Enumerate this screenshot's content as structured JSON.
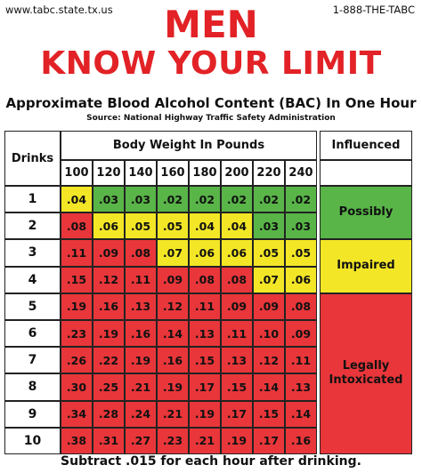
{
  "header": {
    "site": "www.tabc.state.tx.us",
    "phone": "1-888-THE-TABC",
    "title_line1": "MEN",
    "title_line2": "KNOW YOUR LIMIT",
    "subtitle": "Approximate Blood Alcohol Content (BAC) In One Hour",
    "source": "Source: National Highway Traffic Safety Administration"
  },
  "table": {
    "drinks_header": "Drinks",
    "weight_header": "Body Weight In Pounds",
    "influenced_header": "Influenced",
    "weights": [
      "100",
      "120",
      "140",
      "160",
      "180",
      "200",
      "220",
      "240"
    ],
    "rows": [
      {
        "drinks": "1",
        "values": [
          ".04",
          ".03",
          ".03",
          ".02",
          ".02",
          ".02",
          ".02",
          ".02"
        ],
        "levels": [
          "i",
          "p",
          "p",
          "p",
          "p",
          "p",
          "p",
          "p"
        ]
      },
      {
        "drinks": "2",
        "values": [
          ".08",
          ".06",
          ".05",
          ".05",
          ".04",
          ".04",
          ".03",
          ".03"
        ],
        "levels": [
          "l",
          "i",
          "i",
          "i",
          "i",
          "i",
          "p",
          "p"
        ]
      },
      {
        "drinks": "3",
        "values": [
          ".11",
          ".09",
          ".08",
          ".07",
          ".06",
          ".06",
          ".05",
          ".05"
        ],
        "levels": [
          "l",
          "l",
          "l",
          "i",
          "i",
          "i",
          "i",
          "i"
        ]
      },
      {
        "drinks": "4",
        "values": [
          ".15",
          ".12",
          ".11",
          ".09",
          ".08",
          ".08",
          ".07",
          ".06"
        ],
        "levels": [
          "l",
          "l",
          "l",
          "l",
          "l",
          "l",
          "i",
          "i"
        ]
      },
      {
        "drinks": "5",
        "values": [
          ".19",
          ".16",
          ".13",
          ".12",
          ".11",
          ".09",
          ".09",
          ".08"
        ],
        "levels": [
          "l",
          "l",
          "l",
          "l",
          "l",
          "l",
          "l",
          "l"
        ]
      },
      {
        "drinks": "6",
        "values": [
          ".23",
          ".19",
          ".16",
          ".14",
          ".13",
          ".11",
          ".10",
          ".09"
        ],
        "levels": [
          "l",
          "l",
          "l",
          "l",
          "l",
          "l",
          "l",
          "l"
        ]
      },
      {
        "drinks": "7",
        "values": [
          ".26",
          ".22",
          ".19",
          ".16",
          ".15",
          ".13",
          ".12",
          ".11"
        ],
        "levels": [
          "l",
          "l",
          "l",
          "l",
          "l",
          "l",
          "l",
          "l"
        ]
      },
      {
        "drinks": "8",
        "values": [
          ".30",
          ".25",
          ".21",
          ".19",
          ".17",
          ".15",
          ".14",
          ".13"
        ],
        "levels": [
          "l",
          "l",
          "l",
          "l",
          "l",
          "l",
          "l",
          "l"
        ]
      },
      {
        "drinks": "9",
        "values": [
          ".34",
          ".28",
          ".24",
          ".21",
          ".19",
          ".17",
          ".15",
          ".14"
        ],
        "levels": [
          "l",
          "l",
          "l",
          "l",
          "l",
          "l",
          "l",
          "l"
        ]
      },
      {
        "drinks": "10",
        "values": [
          ".38",
          ".31",
          ".27",
          ".23",
          ".21",
          ".19",
          ".17",
          ".16"
        ],
        "levels": [
          "l",
          "l",
          "l",
          "l",
          "l",
          "l",
          "l",
          "l"
        ]
      }
    ],
    "bands": [
      {
        "label_lines": [
          "Possibly"
        ],
        "level": "p",
        "start_row": 0,
        "end_row": 1
      },
      {
        "label_lines": [
          "Impaired"
        ],
        "level": "i",
        "start_row": 2,
        "end_row": 3
      },
      {
        "label_lines": [
          "Legally",
          "Intoxicated"
        ],
        "level": "l",
        "start_row": 4,
        "end_row": 9
      }
    ]
  },
  "colors": {
    "p": "#59b548",
    "i": "#f3e626",
    "l": "#e8363a",
    "title": "#e22226"
  },
  "footer": "Subtract .015 for each hour after drinking."
}
